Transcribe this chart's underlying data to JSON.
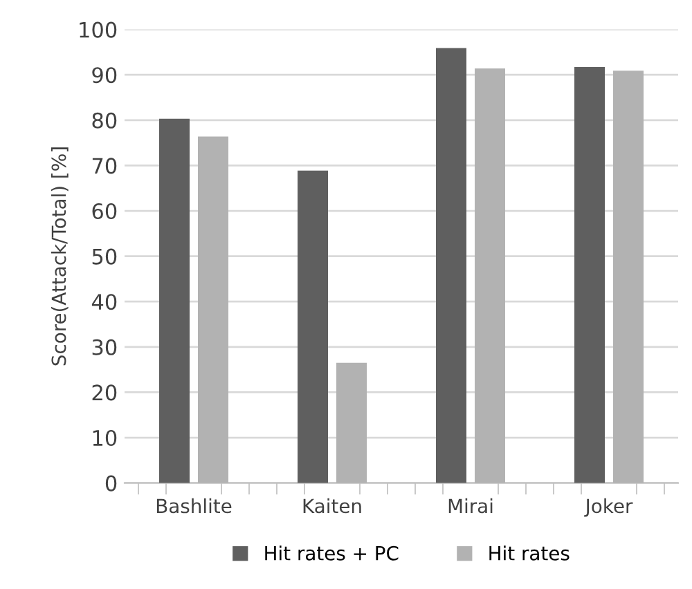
{
  "chart_data": {
    "type": "bar",
    "ylabel": "Score(Attack/Total) [%]",
    "categories": [
      "Bashlite",
      "Kaiten",
      "Mirai",
      "Joker"
    ],
    "series": [
      {
        "name": "Hit rates + PC",
        "color": "#5f5f5f",
        "values": [
          80.3,
          68.9,
          95.9,
          91.7
        ]
      },
      {
        "name": "Hit rates",
        "color": "#b2b2b2",
        "values": [
          76.4,
          26.5,
          91.4,
          90.9
        ]
      }
    ],
    "ylim": [
      0,
      100
    ],
    "yticks": [
      0,
      10,
      20,
      30,
      40,
      50,
      60,
      70,
      80,
      90,
      100
    ],
    "grid": "y",
    "legend": "bottom"
  }
}
